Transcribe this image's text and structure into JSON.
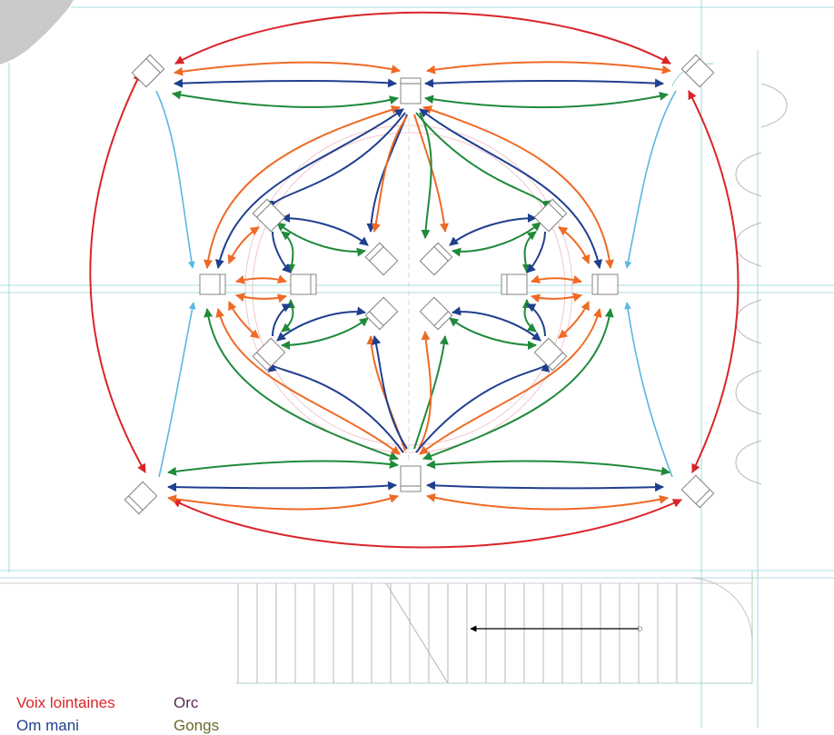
{
  "legend": {
    "voix_lointaines": {
      "label": "Voix lointaines",
      "color": "#d9252a"
    },
    "om_mani": {
      "label": "Om mani",
      "color": "#1f3f8f"
    },
    "orc": {
      "label": "Orc",
      "color": "#5a2a55"
    },
    "gongs": {
      "label": "Gongs",
      "color": "#6a6a2a"
    }
  },
  "colors": {
    "red": "#d9252a",
    "navy": "#1f3f8f",
    "orange": "#ef6a25",
    "green": "#1f8a3a",
    "light_blue": "#5ab8e0",
    "plan_lines": "#8fd0d8",
    "speaker_outline": "#777777"
  },
  "icons": [
    "speaker-icon",
    "door-icon",
    "stair-direction-arrow"
  ]
}
